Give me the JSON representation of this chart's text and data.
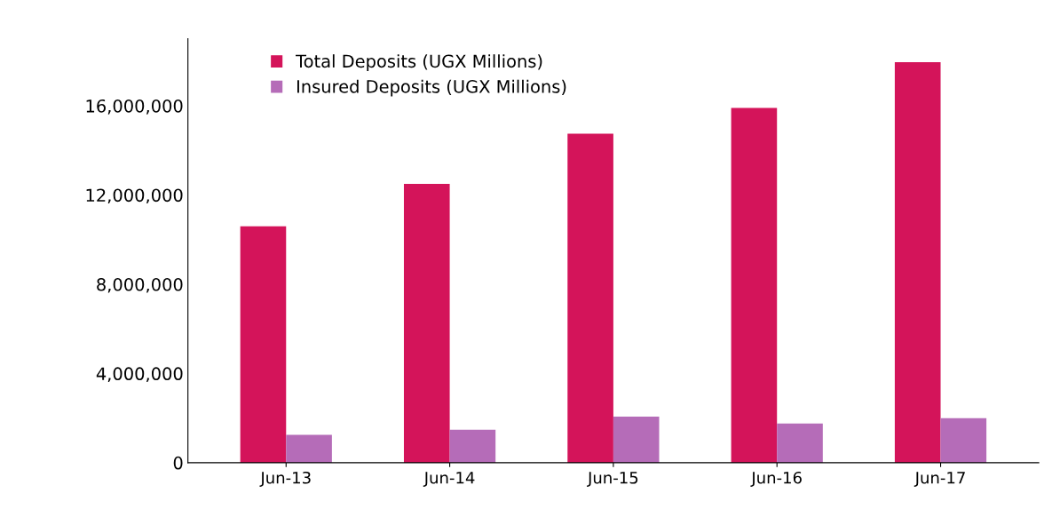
{
  "chart_data": {
    "type": "bar",
    "categories": [
      "Jun-13",
      "Jun-14",
      "Jun-15",
      "Jun-16",
      "Jun-17"
    ],
    "series": [
      {
        "name": "Total Deposits (UGX Millions)",
        "color": "#d4145a",
        "values": [
          10600000,
          12500000,
          14750000,
          15900000,
          17950000
        ]
      },
      {
        "name": "Insured Deposits (UGX Millions)",
        "color": "#b56cb8",
        "values": [
          1250000,
          1480000,
          2070000,
          1760000,
          2000000
        ]
      }
    ],
    "ylim": [
      0,
      19000000
    ],
    "yticks": [
      {
        "value": 0,
        "label": "0"
      },
      {
        "value": 4000000,
        "label": "4,000,000"
      },
      {
        "value": 8000000,
        "label": "8,000,000"
      },
      {
        "value": 12000000,
        "label": "12,000,000"
      },
      {
        "value": 16000000,
        "label": "16,000,000"
      }
    ],
    "grid": false,
    "legend": "top left"
  }
}
